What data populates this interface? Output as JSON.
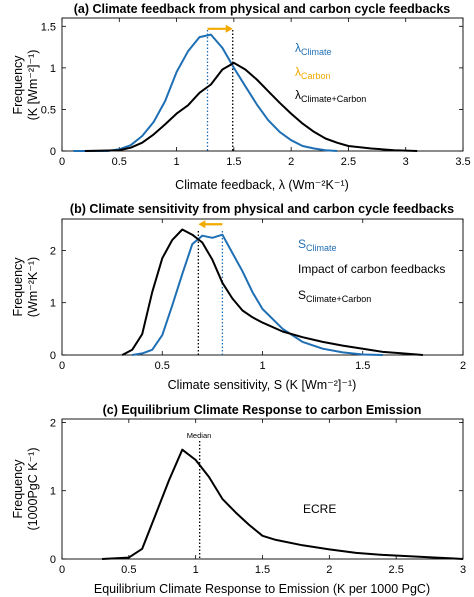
{
  "chart_data": [
    {
      "type": "line",
      "title": "(a) Climate feedback from physical and carbon cycle feedbacks",
      "xlabel": "Climate feedback, λ (Wm⁻²K⁻¹)",
      "ylabel_line1": "Frequency",
      "ylabel_line2": "(K [Wm⁻²]⁻¹)",
      "xlim": [
        0,
        3.5
      ],
      "ylim": [
        0,
        1.6
      ],
      "xticks": [
        0,
        0.5,
        1,
        1.5,
        2,
        2.5,
        3,
        3.5
      ],
      "xtick_labels": [
        "0",
        "0.5",
        "1",
        "1.5",
        "2",
        "2.5",
        "3",
        "3.5"
      ],
      "yticks": [
        0,
        0.5,
        1,
        1.5
      ],
      "ytick_labels": [
        "0",
        "0.5",
        "1",
        "1.5"
      ],
      "legend_placement": "top-right",
      "series": [
        {
          "name": "λ",
          "name_sub": "Climate",
          "color": "#1f6fb4",
          "x": [
            0.1,
            0.4,
            0.5,
            0.6,
            0.7,
            0.8,
            0.9,
            1.0,
            1.1,
            1.2,
            1.3,
            1.4,
            1.5,
            1.6,
            1.7,
            1.8,
            1.9,
            2.0,
            2.1,
            2.2,
            2.3,
            2.4
          ],
          "y": [
            0.0,
            0.0,
            0.02,
            0.07,
            0.18,
            0.35,
            0.6,
            0.95,
            1.2,
            1.37,
            1.4,
            1.24,
            1.0,
            0.78,
            0.56,
            0.37,
            0.23,
            0.13,
            0.06,
            0.03,
            0.01,
            0.0
          ]
        },
        {
          "name": "λ",
          "name_sub": "Climate+Carbon",
          "color": "#000000",
          "x": [
            0.2,
            0.5,
            0.6,
            0.7,
            0.8,
            0.9,
            1.0,
            1.1,
            1.2,
            1.3,
            1.4,
            1.5,
            1.6,
            1.7,
            1.8,
            1.9,
            2.0,
            2.1,
            2.2,
            2.3,
            2.4,
            2.5,
            2.7,
            2.9,
            3.1
          ],
          "y": [
            0.0,
            0.01,
            0.04,
            0.1,
            0.2,
            0.32,
            0.45,
            0.55,
            0.7,
            0.8,
            0.98,
            1.06,
            0.98,
            0.86,
            0.72,
            0.58,
            0.45,
            0.33,
            0.23,
            0.15,
            0.1,
            0.06,
            0.03,
            0.01,
            0.0
          ]
        }
      ],
      "medians": [
        {
          "x": 1.27,
          "color": "#1f6fb4",
          "style": "dotted"
        },
        {
          "x": 1.49,
          "color": "#000000",
          "style": "dotted"
        }
      ],
      "arrow": {
        "from": 1.27,
        "to": 1.49,
        "y": 1.47,
        "color": "#f2a900"
      },
      "legend": [
        {
          "label": "λ",
          "sub": "Climate",
          "color": "#1f6fb4"
        },
        {
          "label": "λ",
          "sub": "Carbon",
          "color": "#f2a900"
        },
        {
          "label": "λ",
          "sub": "Climate+Carbon",
          "color": "#000000"
        }
      ]
    },
    {
      "type": "line",
      "title": "(b) Climate sensitivity from physical and carbon cycle feedbacks",
      "xlabel": "Climate sensitivity, S (K [Wm⁻²]⁻¹)",
      "ylabel_line1": "Frequency",
      "ylabel_line2": "(Wm⁻²K⁻¹)",
      "xlim": [
        0,
        2
      ],
      "ylim": [
        0,
        2.6
      ],
      "xticks": [
        0,
        0.5,
        1,
        1.5,
        2
      ],
      "xtick_labels": [
        "0",
        "0.5",
        "1",
        "1.5",
        "2"
      ],
      "yticks": [
        0,
        1,
        2
      ],
      "ytick_labels": [
        "0",
        "1",
        "2"
      ],
      "legend_placement": "top-right",
      "series": [
        {
          "name": "S",
          "name_sub": "Climate",
          "color": "#1f6fb4",
          "x": [
            0.35,
            0.4,
            0.45,
            0.5,
            0.55,
            0.6,
            0.65,
            0.7,
            0.75,
            0.8,
            0.85,
            0.9,
            0.95,
            1.0,
            1.1,
            1.2,
            1.3,
            1.4,
            1.5,
            1.6
          ],
          "y": [
            0.0,
            0.03,
            0.1,
            0.38,
            0.95,
            1.55,
            2.12,
            2.28,
            2.24,
            2.3,
            1.95,
            1.6,
            1.2,
            0.88,
            0.5,
            0.25,
            0.12,
            0.05,
            0.01,
            0.0
          ]
        },
        {
          "name": "S",
          "name_sub": "Climate+Carbon",
          "color": "#000000",
          "x": [
            0.3,
            0.35,
            0.4,
            0.45,
            0.5,
            0.55,
            0.6,
            0.65,
            0.7,
            0.75,
            0.8,
            0.85,
            0.9,
            0.95,
            1.0,
            1.1,
            1.2,
            1.3,
            1.4,
            1.5,
            1.6,
            1.7,
            1.8
          ],
          "y": [
            0.0,
            0.1,
            0.4,
            1.2,
            1.85,
            2.2,
            2.4,
            2.3,
            2.15,
            1.82,
            1.38,
            1.08,
            0.85,
            0.72,
            0.62,
            0.45,
            0.34,
            0.25,
            0.18,
            0.12,
            0.06,
            0.03,
            0.0
          ]
        }
      ],
      "medians": [
        {
          "x": 0.8,
          "color": "#1f6fb4",
          "style": "dotted"
        },
        {
          "x": 0.68,
          "color": "#000000",
          "style": "dotted"
        }
      ],
      "arrow": {
        "from": 0.8,
        "to": 0.68,
        "y": 2.5,
        "color": "#f2a900"
      },
      "legend": [
        {
          "label": "S",
          "sub": "Climate",
          "color": "#1f6fb4"
        },
        {
          "label": "Impact of carbon feedbacks",
          "sub": "",
          "color": "#f2a900"
        },
        {
          "label": "S",
          "sub": "Climate+Carbon",
          "color": "#000000"
        }
      ]
    },
    {
      "type": "line",
      "title": "(c) Equilibrium Climate Response to carbon Emission",
      "xlabel": "Equilibrium Climate Response to Emission (K per 1000 PgC)",
      "ylabel_line1": "Frequency",
      "ylabel_line2": "(1000PgC K⁻¹)",
      "xlim": [
        0,
        3
      ],
      "ylim": [
        0,
        2.05
      ],
      "xticks": [
        0,
        0.5,
        1,
        1.5,
        2,
        2.5,
        3
      ],
      "xtick_labels": [
        "0",
        "0.5",
        "1",
        "1.5",
        "2",
        "2.5",
        "3"
      ],
      "yticks": [
        0,
        1,
        2
      ],
      "ytick_labels": [
        "0",
        "1",
        "2"
      ],
      "series": [
        {
          "name": "ECRE",
          "color": "#000000",
          "x": [
            0.3,
            0.5,
            0.6,
            0.7,
            0.8,
            0.9,
            1.0,
            1.1,
            1.2,
            1.3,
            1.4,
            1.5,
            1.6,
            1.8,
            2.0,
            2.2,
            2.4,
            2.6,
            2.8,
            2.9,
            3.0
          ],
          "y": [
            0.0,
            0.02,
            0.15,
            0.65,
            1.15,
            1.6,
            1.45,
            1.2,
            0.88,
            0.68,
            0.5,
            0.34,
            0.28,
            0.2,
            0.14,
            0.09,
            0.06,
            0.04,
            0.02,
            0.01,
            0.0
          ]
        }
      ],
      "medians": [
        {
          "x": 1.03,
          "color": "#000000",
          "style": "dotted",
          "label": "Median"
        }
      ],
      "legend": [
        {
          "label": "ECRE",
          "sub": "",
          "color": "#000000"
        }
      ]
    }
  ]
}
